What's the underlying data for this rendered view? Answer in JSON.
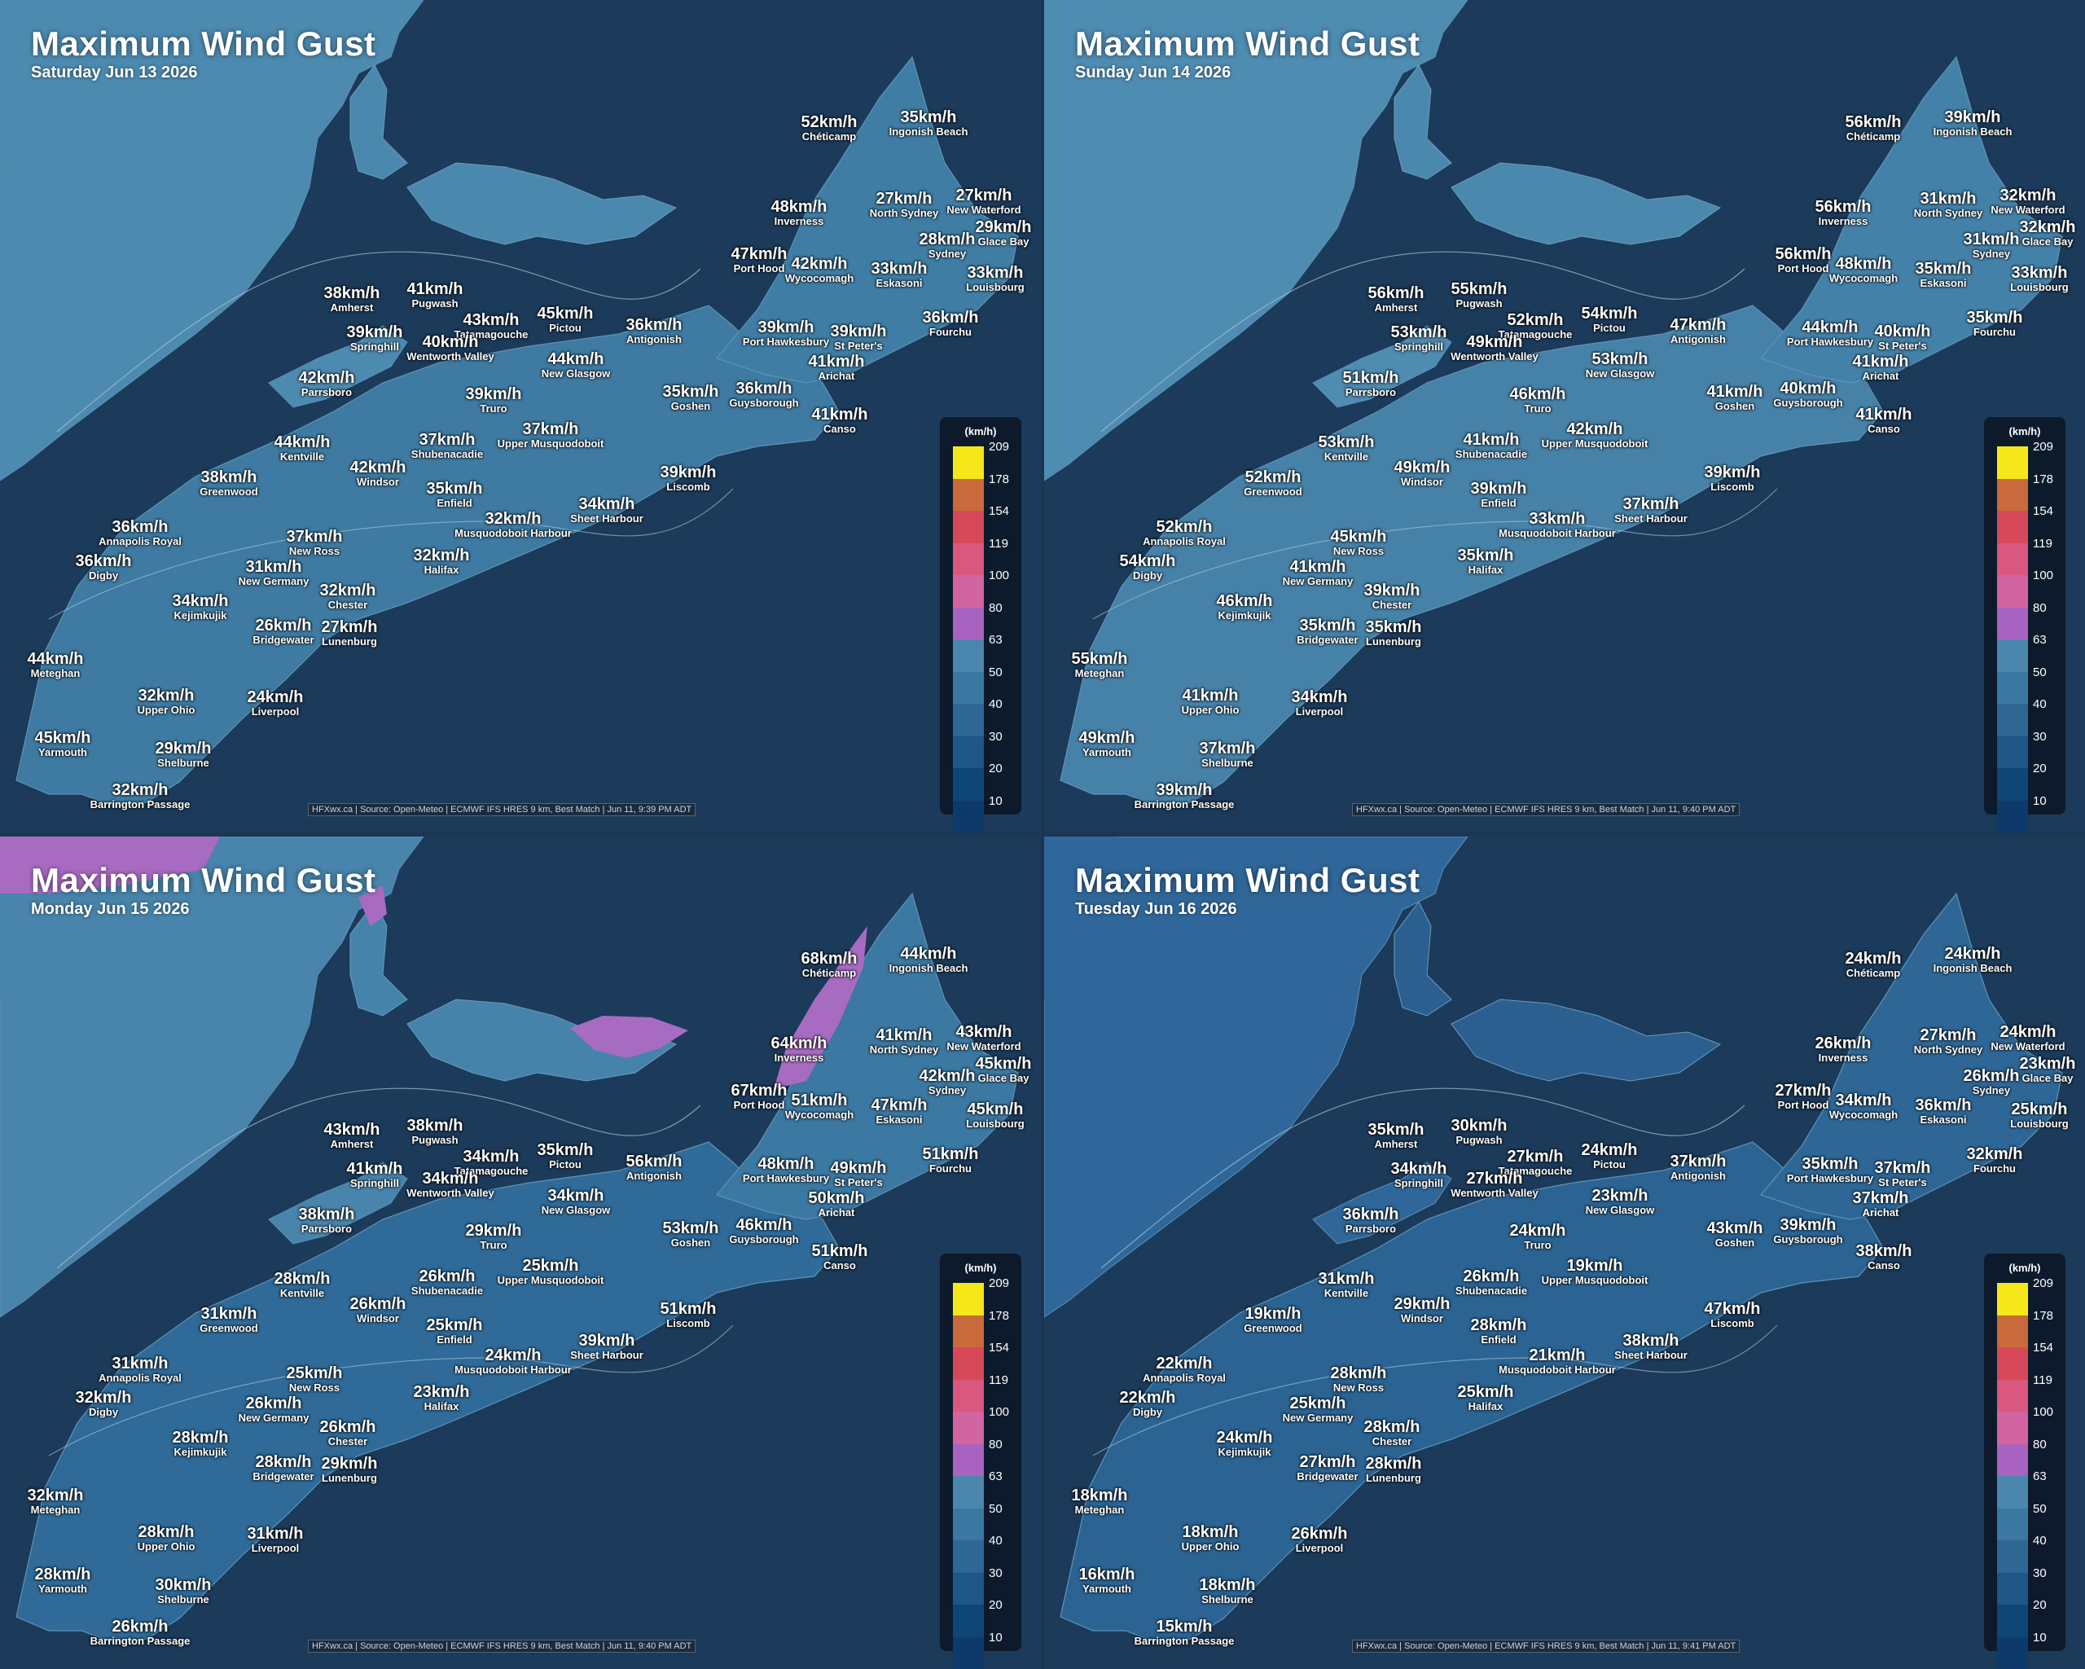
{
  "title": "Maximum Wind Gust",
  "legend": {
    "unit": "(km/h)",
    "ticks": [
      "209",
      "178",
      "154",
      "119",
      "100",
      "80",
      "63",
      "50",
      "40",
      "30",
      "20",
      "10"
    ],
    "colors": [
      "#f6e71a",
      "#c96a3c",
      "#d6485a",
      "#d9587f",
      "#d364a2",
      "#a863c0",
      "#4b86ad",
      "#3a78a2",
      "#2e6794",
      "#1e5688",
      "#104578",
      "#0d3a6a"
    ]
  },
  "panels": [
    {
      "date": "Saturday Jun 13 2026",
      "credit": "HFXwx.ca | Source: Open-Meteo | ECMWF IFS HRES 9 km, Best Match | Jun 11, 9:39 PM ADT",
      "values": {
        "Chéticamp": "52km/h",
        "Ingonish Beach": "35km/h",
        "Inverness": "48km/h",
        "North Sydney": "27km/h",
        "New Waterford": "27km/h",
        "Glace Bay": "29km/h",
        "Sydney": "28km/h",
        "Port Hood": "47km/h",
        "Wycocomagh": "42km/h",
        "Eskasoni": "33km/h",
        "Louisbourg": "33km/h",
        "Amherst": "38km/h",
        "Pugwash": "41km/h",
        "Tatamagouche": "43km/h",
        "Pictou": "45km/h",
        "Antigonish": "36km/h",
        "Fourchu": "36km/h",
        "Springhill": "39km/h",
        "Wentworth Valley": "40km/h",
        "Port Hawkesbury": "39km/h",
        "St Peter's": "39km/h",
        "Arichat": "41km/h",
        "New Glasgow": "44km/h",
        "Parrsboro": "42km/h",
        "Truro": "39km/h",
        "Goshen": "35km/h",
        "Guysborough": "36km/h",
        "Canso": "41km/h",
        "Kentville": "44km/h",
        "Shubenacadie": "37km/h",
        "Upper Musquodoboit": "37km/h",
        "Greenwood": "38km/h",
        "Windsor": "42km/h",
        "Liscomb": "39km/h",
        "Enfield": "35km/h",
        "Sheet Harbour": "34km/h",
        "Annapolis Royal": "36km/h",
        "New Ross": "37km/h",
        "Musquodoboit Harbour": "32km/h",
        "Digby": "36km/h",
        "New Germany": "31km/h",
        "Halifax": "32km/h",
        "Kejimkujik": "34km/h",
        "Chester": "32km/h",
        "Lunenburg": "27km/h",
        "Bridgewater": "26km/h",
        "Meteghan": "44km/h",
        "Upper Ohio": "32km/h",
        "Liverpool": "24km/h",
        "Yarmouth": "45km/h",
        "Shelburne": "29km/h",
        "Barrington Passage": "32km/h"
      }
    },
    {
      "date": "Sunday Jun 14 2026",
      "credit": "HFXwx.ca | Source: Open-Meteo | ECMWF IFS HRES 9 km, Best Match | Jun 11, 9:40 PM ADT",
      "values": {
        "Chéticamp": "56km/h",
        "Ingonish Beach": "39km/h",
        "Inverness": "56km/h",
        "North Sydney": "31km/h",
        "New Waterford": "32km/h",
        "Glace Bay": "32km/h",
        "Sydney": "31km/h",
        "Port Hood": "56km/h",
        "Wycocomagh": "48km/h",
        "Eskasoni": "35km/h",
        "Louisbourg": "33km/h",
        "Amherst": "56km/h",
        "Pugwash": "55km/h",
        "Tatamagouche": "52km/h",
        "Pictou": "54km/h",
        "Antigonish": "47km/h",
        "Fourchu": "35km/h",
        "Springhill": "53km/h",
        "Wentworth Valley": "49km/h",
        "Port Hawkesbury": "44km/h",
        "St Peter's": "40km/h",
        "Arichat": "41km/h",
        "New Glasgow": "53km/h",
        "Parrsboro": "51km/h",
        "Truro": "46km/h",
        "Goshen": "41km/h",
        "Guysborough": "40km/h",
        "Canso": "41km/h",
        "Kentville": "53km/h",
        "Shubenacadie": "41km/h",
        "Upper Musquodoboit": "42km/h",
        "Greenwood": "52km/h",
        "Windsor": "49km/h",
        "Liscomb": "39km/h",
        "Enfield": "39km/h",
        "Sheet Harbour": "37km/h",
        "Annapolis Royal": "52km/h",
        "New Ross": "45km/h",
        "Musquodoboit Harbour": "33km/h",
        "Digby": "54km/h",
        "New Germany": "41km/h",
        "Halifax": "35km/h",
        "Kejimkujik": "46km/h",
        "Chester": "39km/h",
        "Lunenburg": "35km/h",
        "Bridgewater": "35km/h",
        "Meteghan": "55km/h",
        "Upper Ohio": "41km/h",
        "Liverpool": "34km/h",
        "Yarmouth": "49km/h",
        "Shelburne": "37km/h",
        "Barrington Passage": "39km/h"
      }
    },
    {
      "date": "Monday Jun 15 2026",
      "credit": "HFXwx.ca | Source: Open-Meteo | ECMWF IFS HRES 9 km, Best Match | Jun 11, 9:40 PM ADT",
      "values": {
        "Chéticamp": "68km/h",
        "Ingonish Beach": "44km/h",
        "Inverness": "64km/h",
        "North Sydney": "41km/h",
        "New Waterford": "43km/h",
        "Glace Bay": "45km/h",
        "Sydney": "42km/h",
        "Port Hood": "67km/h",
        "Wycocomagh": "51km/h",
        "Eskasoni": "47km/h",
        "Louisbourg": "45km/h",
        "Amherst": "43km/h",
        "Pugwash": "38km/h",
        "Tatamagouche": "34km/h",
        "Pictou": "35km/h",
        "Antigonish": "56km/h",
        "Fourchu": "51km/h",
        "Springhill": "41km/h",
        "Wentworth Valley": "34km/h",
        "Port Hawkesbury": "48km/h",
        "St Peter's": "49km/h",
        "Arichat": "50km/h",
        "New Glasgow": "34km/h",
        "Parrsboro": "38km/h",
        "Truro": "29km/h",
        "Goshen": "53km/h",
        "Guysborough": "46km/h",
        "Canso": "51km/h",
        "Kentville": "28km/h",
        "Shubenacadie": "26km/h",
        "Upper Musquodoboit": "25km/h",
        "Greenwood": "31km/h",
        "Windsor": "26km/h",
        "Liscomb": "51km/h",
        "Enfield": "25km/h",
        "Sheet Harbour": "39km/h",
        "Annapolis Royal": "31km/h",
        "New Ross": "25km/h",
        "Musquodoboit Harbour": "24km/h",
        "Digby": "32km/h",
        "New Germany": "26km/h",
        "Halifax": "23km/h",
        "Kejimkujik": "28km/h",
        "Chester": "26km/h",
        "Lunenburg": "29km/h",
        "Bridgewater": "28km/h",
        "Meteghan": "32km/h",
        "Upper Ohio": "28km/h",
        "Liverpool": "31km/h",
        "Yarmouth": "28km/h",
        "Shelburne": "30km/h",
        "Barrington Passage": "26km/h"
      }
    },
    {
      "date": "Tuesday Jun 16 2026",
      "credit": "HFXwx.ca | Source: Open-Meteo | ECMWF IFS HRES 9 km, Best Match | Jun 11, 9:41 PM ADT",
      "values": {
        "Chéticamp": "24km/h",
        "Ingonish Beach": "24km/h",
        "Inverness": "26km/h",
        "North Sydney": "27km/h",
        "New Waterford": "24km/h",
        "Glace Bay": "23km/h",
        "Sydney": "26km/h",
        "Port Hood": "27km/h",
        "Wycocomagh": "34km/h",
        "Eskasoni": "36km/h",
        "Louisbourg": "25km/h",
        "Amherst": "35km/h",
        "Pugwash": "30km/h",
        "Tatamagouche": "27km/h",
        "Pictou": "24km/h",
        "Antigonish": "37km/h",
        "Fourchu": "32km/h",
        "Springhill": "34km/h",
        "Wentworth Valley": "27km/h",
        "Port Hawkesbury": "35km/h",
        "St Peter's": "37km/h",
        "Arichat": "37km/h",
        "New Glasgow": "23km/h",
        "Parrsboro": "36km/h",
        "Truro": "24km/h",
        "Goshen": "43km/h",
        "Guysborough": "39km/h",
        "Canso": "38km/h",
        "Kentville": "31km/h",
        "Shubenacadie": "26km/h",
        "Upper Musquodoboit": "19km/h",
        "Greenwood": "19km/h",
        "Windsor": "29km/h",
        "Liscomb": "47km/h",
        "Enfield": "28km/h",
        "Sheet Harbour": "38km/h",
        "Annapolis Royal": "22km/h",
        "New Ross": "28km/h",
        "Musquodoboit Harbour": "21km/h",
        "Digby": "22km/h",
        "New Germany": "25km/h",
        "Halifax": "25km/h",
        "Kejimkujik": "24km/h",
        "Chester": "28km/h",
        "Lunenburg": "28km/h",
        "Bridgewater": "27km/h",
        "Meteghan": "18km/h",
        "Upper Ohio": "18km/h",
        "Liverpool": "26km/h",
        "Yarmouth": "16km/h",
        "Shelburne": "18km/h",
        "Barrington Passage": "15km/h"
      }
    }
  ]
}
